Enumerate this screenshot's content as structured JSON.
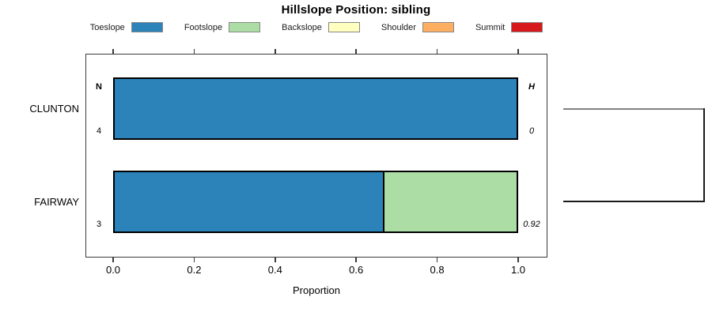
{
  "chart_data": {
    "type": "bar",
    "orientation": "horizontal-stacked",
    "title": "Hillslope Position: sibling",
    "xlabel": "Proportion",
    "xlim": [
      0,
      1
    ],
    "x_ticks": [
      "0.0",
      "0.2",
      "0.4",
      "0.6",
      "0.8",
      "1.0"
    ],
    "grid": false,
    "legend_position": "top",
    "legend": [
      {
        "label": "Toeslope",
        "color": "#2B83BA"
      },
      {
        "label": "Footslope",
        "color": "#ABDDA4"
      },
      {
        "label": "Backslope",
        "color": "#FFFFBF"
      },
      {
        "label": "Shoulder",
        "color": "#FDAE61"
      },
      {
        "label": "Summit",
        "color": "#D7191C"
      }
    ],
    "column_headers": {
      "left": "N",
      "right": "H"
    },
    "rows": [
      {
        "category": "CLUNTON",
        "n": "4",
        "h": "0",
        "segments": [
          {
            "label": "Toeslope",
            "proportion": 1.0
          }
        ]
      },
      {
        "category": "FAIRWAY",
        "n": "3",
        "h": "0.92",
        "segments": [
          {
            "label": "Toeslope",
            "proportion": 0.667
          },
          {
            "label": "Footslope",
            "proportion": 0.333
          }
        ]
      }
    ],
    "cluster_bracket": {
      "joins": [
        "CLUNTON",
        "FAIRWAY"
      ]
    }
  }
}
